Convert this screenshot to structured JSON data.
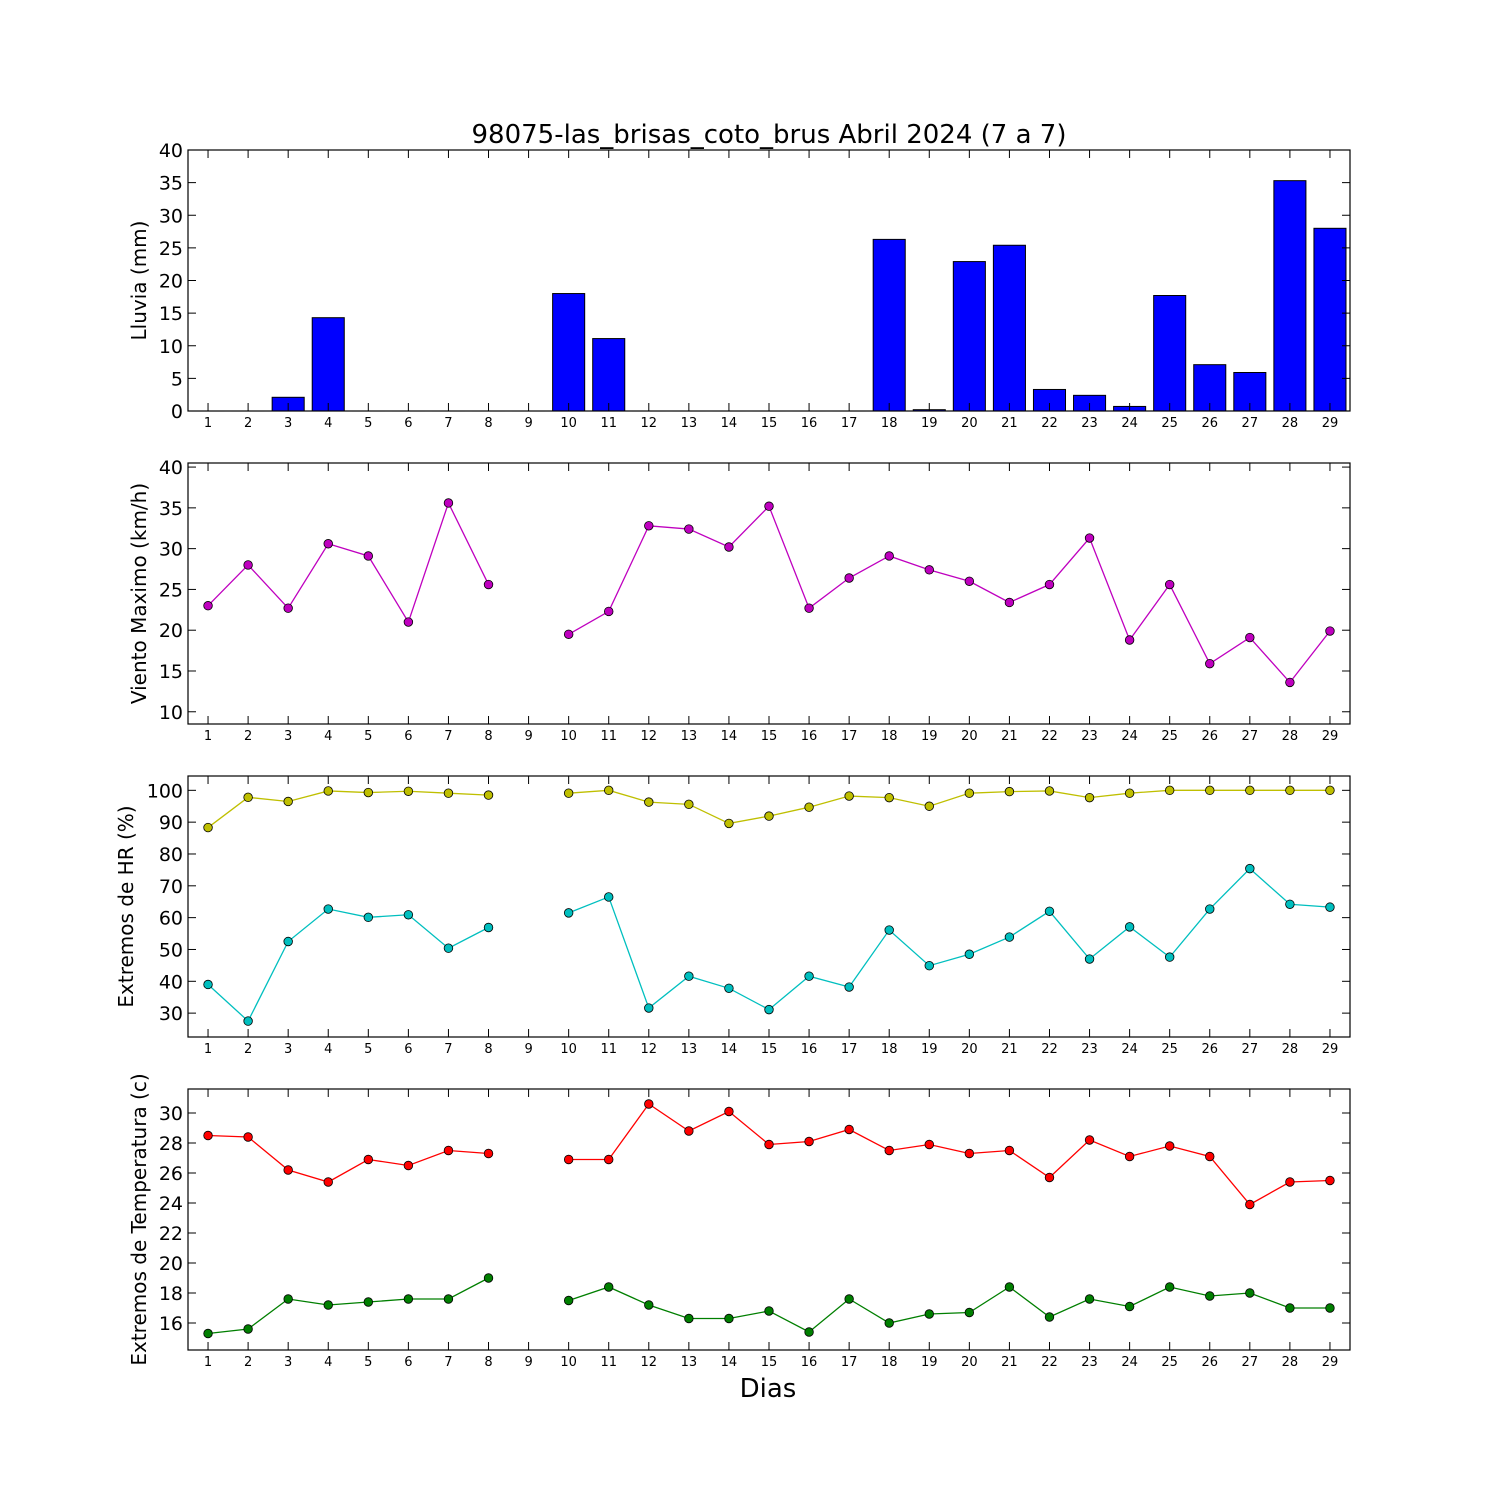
{
  "chart_data": [
    {
      "type": "bar",
      "title": "98075-las_brisas_coto_brus Abril 2024  (7 a 7)",
      "ylabel": "Lluvia (mm)",
      "xlabel": "",
      "ylim": [
        0,
        40
      ],
      "yticks": [
        0,
        5,
        10,
        15,
        20,
        25,
        30,
        35,
        40
      ],
      "xlim": [
        0.5,
        29.5
      ],
      "categories": [
        1,
        2,
        3,
        4,
        5,
        6,
        7,
        8,
        9,
        10,
        11,
        12,
        13,
        14,
        15,
        16,
        17,
        18,
        19,
        20,
        21,
        22,
        23,
        24,
        25,
        26,
        27,
        28,
        29
      ],
      "values": [
        0,
        0,
        2.1,
        14.3,
        0,
        0,
        0,
        0,
        0,
        18.0,
        11.1,
        0,
        0,
        0,
        0,
        0,
        0,
        26.3,
        0.2,
        22.9,
        25.4,
        3.3,
        2.4,
        0.7,
        17.7,
        7.1,
        5.9,
        35.3,
        28.0
      ],
      "color": "#0000ff"
    },
    {
      "type": "line",
      "ylabel": "Viento Maximo (km/h)",
      "xlabel": "",
      "ylim": [
        8.5,
        40.5
      ],
      "yticks": [
        10,
        15,
        20,
        25,
        30,
        35,
        40
      ],
      "xlim": [
        0.5,
        29.5
      ],
      "x": [
        1,
        2,
        3,
        4,
        5,
        6,
        7,
        8,
        9,
        10,
        11,
        12,
        13,
        14,
        15,
        16,
        17,
        18,
        19,
        20,
        21,
        22,
        23,
        24,
        25,
        26,
        27,
        28,
        29
      ],
      "series": [
        {
          "color": "#bf00bf",
          "values": [
            23.0,
            28.0,
            22.7,
            30.6,
            29.1,
            21.0,
            35.6,
            25.6,
            null,
            19.5,
            22.3,
            32.8,
            32.4,
            30.2,
            35.2,
            22.7,
            26.4,
            29.1,
            27.4,
            26.0,
            23.4,
            25.6,
            31.3,
            18.8,
            25.6,
            15.9,
            19.1,
            13.6,
            19.9
          ]
        }
      ]
    },
    {
      "type": "line",
      "ylabel": "Extremos de HR (%)",
      "xlabel": "",
      "ylim": [
        22.5,
        104.5
      ],
      "yticks": [
        30,
        40,
        50,
        60,
        70,
        80,
        90,
        100
      ],
      "xlim": [
        0.5,
        29.5
      ],
      "x": [
        1,
        2,
        3,
        4,
        5,
        6,
        7,
        8,
        9,
        10,
        11,
        12,
        13,
        14,
        15,
        16,
        17,
        18,
        19,
        20,
        21,
        22,
        23,
        24,
        25,
        26,
        27,
        28,
        29
      ],
      "series": [
        {
          "color": "#bfbf00",
          "values": [
            88.3,
            97.8,
            96.5,
            99.8,
            99.3,
            99.7,
            99.1,
            98.5,
            null,
            99.1,
            100.0,
            96.3,
            95.6,
            89.6,
            91.9,
            94.7,
            98.2,
            97.7,
            95.0,
            99.1,
            99.6,
            99.8,
            97.7,
            99.1,
            100.0,
            100.0,
            100.0,
            100.0,
            100.0
          ]
        },
        {
          "color": "#00bfbf",
          "values": [
            39.0,
            27.5,
            52.5,
            62.7,
            60.1,
            60.9,
            50.4,
            56.9,
            null,
            61.5,
            66.5,
            31.6,
            41.6,
            37.8,
            31.1,
            41.6,
            38.2,
            56.1,
            44.9,
            48.5,
            53.9,
            62.0,
            47.0,
            57.1,
            47.6,
            62.7,
            75.4,
            64.2,
            63.3
          ]
        }
      ]
    },
    {
      "type": "line",
      "ylabel": "Extremos de Temperatura (c)",
      "xlabel": "Dias",
      "ylim": [
        14.2,
        31.6
      ],
      "yticks": [
        16,
        18,
        20,
        22,
        24,
        26,
        28,
        30
      ],
      "xlim": [
        0.5,
        29.5
      ],
      "x": [
        1,
        2,
        3,
        4,
        5,
        6,
        7,
        8,
        9,
        10,
        11,
        12,
        13,
        14,
        15,
        16,
        17,
        18,
        19,
        20,
        21,
        22,
        23,
        24,
        25,
        26,
        27,
        28,
        29
      ],
      "series": [
        {
          "color": "#ff0000",
          "values": [
            28.5,
            28.4,
            26.2,
            25.4,
            26.9,
            26.5,
            27.5,
            27.3,
            null,
            26.9,
            26.9,
            30.6,
            28.8,
            30.1,
            27.9,
            28.1,
            28.9,
            27.5,
            27.9,
            27.3,
            27.5,
            25.7,
            28.2,
            27.1,
            27.8,
            27.1,
            23.9,
            25.4,
            25.5
          ]
        },
        {
          "color": "#007f00",
          "values": [
            15.3,
            15.6,
            17.6,
            17.2,
            17.4,
            17.6,
            17.6,
            19.0,
            null,
            17.5,
            18.4,
            17.2,
            16.3,
            16.3,
            16.8,
            15.4,
            17.6,
            16.0,
            16.6,
            16.7,
            18.4,
            16.4,
            17.6,
            17.1,
            18.4,
            17.8,
            18.0,
            17.0,
            17.0
          ]
        }
      ]
    }
  ]
}
